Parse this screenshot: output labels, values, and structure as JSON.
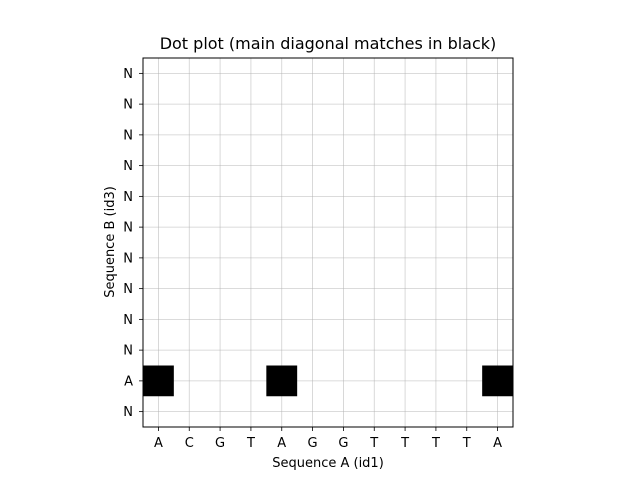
{
  "chart_data": {
    "type": "heatmap",
    "title": "Dot plot (main diagonal matches in black)",
    "xlabel": "Sequence A (id1)",
    "ylabel": "Sequence B (id3)",
    "x_categories": [
      "A",
      "C",
      "G",
      "T",
      "A",
      "G",
      "G",
      "T",
      "T",
      "T",
      "T",
      "A"
    ],
    "y_categories_bottom_to_top": [
      "N",
      "A",
      "N",
      "N",
      "N",
      "N",
      "N",
      "N",
      "N",
      "N",
      "N",
      "N"
    ],
    "matches": [
      {
        "x_index": 0,
        "y_index": 1,
        "value": 1
      },
      {
        "x_index": 4,
        "y_index": 1,
        "value": 1
      },
      {
        "x_index": 11,
        "y_index": 1,
        "value": 1
      }
    ],
    "match_color": "#000000",
    "background_color": "#ffffff",
    "grid": true
  }
}
